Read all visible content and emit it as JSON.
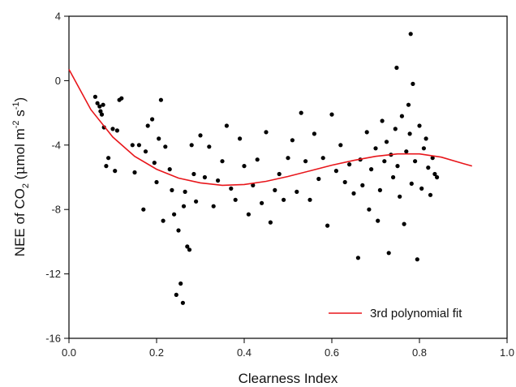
{
  "chart_data": {
    "type": "scatter",
    "xlabel": "Clearness Index",
    "ylabel": {
      "main": "NEE of CO",
      "sub": "2",
      "unit_open": " (",
      "mu": "μ",
      "mol": "mol m",
      "exp1": "-2",
      "s": " s",
      "exp2": "-1",
      "close": ")"
    },
    "xlim": [
      0,
      1.0
    ],
    "ylim": [
      -16,
      4
    ],
    "xticks": [
      {
        "value": 0,
        "label": "0.0"
      },
      {
        "value": 0.2,
        "label": "0.2"
      },
      {
        "value": 0.4,
        "label": "0.4"
      },
      {
        "value": 0.6,
        "label": "0.6"
      },
      {
        "value": 0.8,
        "label": "0.8"
      },
      {
        "value": 1.0,
        "label": "1.0"
      }
    ],
    "yticks": [
      {
        "value": 4,
        "label": "4"
      },
      {
        "value": 0,
        "label": "0"
      },
      {
        "value": -4,
        "label": "-4"
      },
      {
        "value": -8,
        "label": "-8"
      },
      {
        "value": -12,
        "label": "-12"
      },
      {
        "value": -16,
        "label": "-16"
      }
    ],
    "grid": false,
    "legend": {
      "position": "bottom-right",
      "entries": [
        {
          "label": "3rd polynomial fit",
          "color": "#e8161b",
          "kind": "line"
        }
      ]
    },
    "series": [
      {
        "kind": "points",
        "color": "#000000",
        "points": [
          [
            0.06,
            -1.0
          ],
          [
            0.065,
            -1.4
          ],
          [
            0.07,
            -1.6
          ],
          [
            0.072,
            -1.9
          ],
          [
            0.075,
            -2.1
          ],
          [
            0.078,
            -1.5
          ],
          [
            0.08,
            -2.9
          ],
          [
            0.085,
            -5.3
          ],
          [
            0.09,
            -4.8
          ],
          [
            0.1,
            -3.0
          ],
          [
            0.105,
            -5.6
          ],
          [
            0.11,
            -3.1
          ],
          [
            0.115,
            -1.2
          ],
          [
            0.12,
            -1.1
          ],
          [
            0.145,
            -4.0
          ],
          [
            0.15,
            -5.7
          ],
          [
            0.16,
            -4.0
          ],
          [
            0.17,
            -8.0
          ],
          [
            0.175,
            -4.4
          ],
          [
            0.18,
            -2.8
          ],
          [
            0.19,
            -2.4
          ],
          [
            0.195,
            -5.1
          ],
          [
            0.2,
            -6.3
          ],
          [
            0.205,
            -3.6
          ],
          [
            0.21,
            -1.2
          ],
          [
            0.215,
            -8.7
          ],
          [
            0.22,
            -4.1
          ],
          [
            0.23,
            -5.5
          ],
          [
            0.235,
            -6.8
          ],
          [
            0.24,
            -8.3
          ],
          [
            0.245,
            -13.3
          ],
          [
            0.25,
            -9.3
          ],
          [
            0.255,
            -12.6
          ],
          [
            0.26,
            -13.8
          ],
          [
            0.262,
            -7.8
          ],
          [
            0.265,
            -6.9
          ],
          [
            0.27,
            -10.3
          ],
          [
            0.275,
            -10.5
          ],
          [
            0.28,
            -4.0
          ],
          [
            0.285,
            -5.8
          ],
          [
            0.29,
            -7.5
          ],
          [
            0.3,
            -3.4
          ],
          [
            0.31,
            -6.0
          ],
          [
            0.32,
            -4.1
          ],
          [
            0.33,
            -7.8
          ],
          [
            0.34,
            -6.2
          ],
          [
            0.35,
            -5.0
          ],
          [
            0.36,
            -2.8
          ],
          [
            0.37,
            -6.7
          ],
          [
            0.38,
            -7.4
          ],
          [
            0.39,
            -3.6
          ],
          [
            0.4,
            -5.3
          ],
          [
            0.41,
            -8.3
          ],
          [
            0.42,
            -6.5
          ],
          [
            0.43,
            -4.9
          ],
          [
            0.44,
            -7.6
          ],
          [
            0.45,
            -3.2
          ],
          [
            0.46,
            -8.8
          ],
          [
            0.47,
            -6.8
          ],
          [
            0.48,
            -5.8
          ],
          [
            0.49,
            -7.4
          ],
          [
            0.5,
            -4.8
          ],
          [
            0.51,
            -3.7
          ],
          [
            0.52,
            -6.9
          ],
          [
            0.53,
            -2.0
          ],
          [
            0.54,
            -5.0
          ],
          [
            0.55,
            -7.4
          ],
          [
            0.56,
            -3.3
          ],
          [
            0.57,
            -6.1
          ],
          [
            0.58,
            -4.8
          ],
          [
            0.59,
            -9.0
          ],
          [
            0.6,
            -2.1
          ],
          [
            0.61,
            -5.6
          ],
          [
            0.62,
            -4.0
          ],
          [
            0.63,
            -6.3
          ],
          [
            0.64,
            -5.2
          ],
          [
            0.65,
            -7.0
          ],
          [
            0.66,
            -11.0
          ],
          [
            0.665,
            -4.9
          ],
          [
            0.67,
            -6.5
          ],
          [
            0.68,
            -3.2
          ],
          [
            0.685,
            -8.0
          ],
          [
            0.69,
            -5.5
          ],
          [
            0.7,
            -4.2
          ],
          [
            0.705,
            -8.7
          ],
          [
            0.71,
            -6.8
          ],
          [
            0.715,
            -2.5
          ],
          [
            0.72,
            -5.0
          ],
          [
            0.725,
            -3.8
          ],
          [
            0.73,
            -10.7
          ],
          [
            0.735,
            -4.6
          ],
          [
            0.74,
            -6.0
          ],
          [
            0.745,
            -3.0
          ],
          [
            0.748,
            0.8
          ],
          [
            0.75,
            -5.3
          ],
          [
            0.755,
            -7.2
          ],
          [
            0.76,
            -2.2
          ],
          [
            0.765,
            -8.9
          ],
          [
            0.77,
            -4.4
          ],
          [
            0.775,
            -1.5
          ],
          [
            0.778,
            -3.3
          ],
          [
            0.78,
            2.9
          ],
          [
            0.782,
            -6.4
          ],
          [
            0.785,
            -0.2
          ],
          [
            0.79,
            -5.0
          ],
          [
            0.795,
            -11.1
          ],
          [
            0.8,
            -2.8
          ],
          [
            0.805,
            -6.7
          ],
          [
            0.81,
            -4.2
          ],
          [
            0.815,
            -3.6
          ],
          [
            0.82,
            -5.4
          ],
          [
            0.825,
            -7.1
          ],
          [
            0.83,
            -4.8
          ],
          [
            0.835,
            -5.8
          ],
          [
            0.84,
            -6.0
          ]
        ]
      },
      {
        "kind": "line",
        "name": "3rd polynomial fit",
        "color": "#e8161b",
        "points": [
          [
            0.0,
            0.7
          ],
          [
            0.05,
            -1.8
          ],
          [
            0.1,
            -3.5
          ],
          [
            0.15,
            -4.7
          ],
          [
            0.2,
            -5.5
          ],
          [
            0.25,
            -6.05
          ],
          [
            0.3,
            -6.35
          ],
          [
            0.35,
            -6.5
          ],
          [
            0.4,
            -6.45
          ],
          [
            0.45,
            -6.25
          ],
          [
            0.5,
            -5.95
          ],
          [
            0.55,
            -5.6
          ],
          [
            0.6,
            -5.25
          ],
          [
            0.65,
            -4.95
          ],
          [
            0.7,
            -4.7
          ],
          [
            0.75,
            -4.55
          ],
          [
            0.8,
            -4.55
          ],
          [
            0.85,
            -4.75
          ],
          [
            0.9,
            -5.15
          ],
          [
            0.92,
            -5.3
          ]
        ]
      }
    ]
  }
}
